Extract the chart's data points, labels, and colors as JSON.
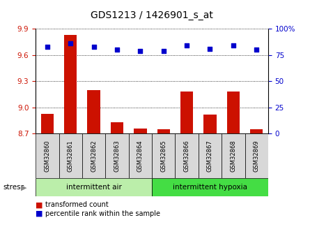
{
  "title": "GDS1213 / 1426901_s_at",
  "samples": [
    "GSM32860",
    "GSM32861",
    "GSM32862",
    "GSM32863",
    "GSM32864",
    "GSM32865",
    "GSM32866",
    "GSM32867",
    "GSM32868",
    "GSM32869"
  ],
  "transformed_count": [
    8.93,
    9.83,
    9.2,
    8.83,
    8.76,
    8.75,
    9.18,
    8.92,
    9.18,
    8.75
  ],
  "percentile_rank": [
    83,
    86,
    83,
    80,
    79,
    79,
    84,
    81,
    84,
    80
  ],
  "ylim_left": [
    8.7,
    9.9
  ],
  "ylim_right": [
    0,
    100
  ],
  "yticks_left": [
    8.7,
    9.0,
    9.3,
    9.6,
    9.9
  ],
  "yticks_right": [
    0,
    25,
    50,
    75,
    100
  ],
  "bar_color": "#cc1100",
  "dot_color": "#0000cc",
  "group1_label": "intermittent air",
  "group2_label": "intermittent hypoxia",
  "group_color1": "#bbeeaa",
  "group_color2": "#44dd44",
  "stress_label": "stress",
  "legend1": "transformed count",
  "legend2": "percentile rank within the sample",
  "tick_label_color_left": "#cc1100",
  "tick_label_color_right": "#0000cc",
  "sample_bg_color": "#d8d8d8",
  "plot_bg": "white"
}
